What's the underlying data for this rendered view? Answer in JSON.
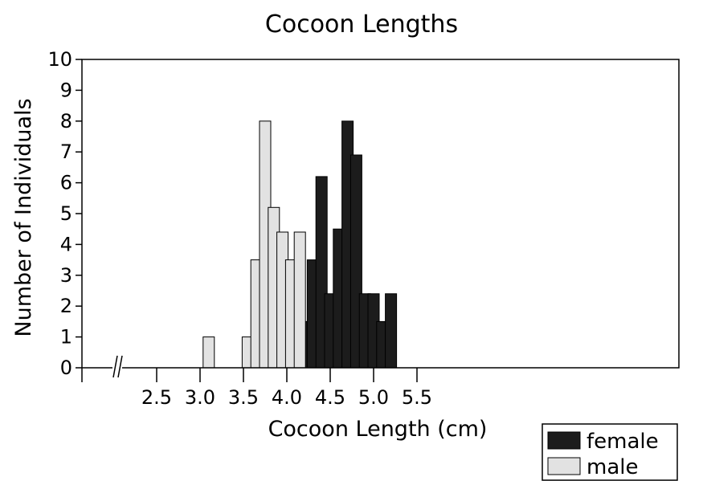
{
  "chart_data": {
    "type": "bar",
    "title": "Cocoon Lengths",
    "xlabel": "Cocoon Length (cm)",
    "ylabel": "Number of Individuals",
    "xlim": [
      2.0,
      5.5
    ],
    "ylim": [
      0,
      10
    ],
    "x_ticks": [
      2.5,
      3.0,
      3.5,
      4.0,
      4.5,
      5.0,
      5.5
    ],
    "x_tick_labels": [
      "2.5",
      "3.0",
      "3.5",
      "4.0",
      "4.5",
      "5.0",
      "5.5"
    ],
    "y_ticks": [
      0,
      1,
      2,
      3,
      4,
      5,
      6,
      7,
      8,
      9,
      10
    ],
    "y_tick_labels": [
      "0",
      "1",
      "2",
      "3",
      "4",
      "5",
      "6",
      "7",
      "8",
      "9",
      "10"
    ],
    "axis_break": true,
    "grid": false,
    "legend_position": "bottom-right",
    "series": [
      {
        "name": "female",
        "color": "#1c1c1c",
        "x": [
          4.1,
          4.2,
          4.3,
          4.4,
          4.5,
          4.6,
          4.7,
          4.8,
          4.9,
          5.0,
          5.1,
          5.2
        ],
        "values": [
          2.4,
          1.5,
          3.5,
          6.2,
          2.4,
          4.5,
          8.0,
          6.9,
          2.4,
          2.4,
          1.5,
          2.4
        ]
      },
      {
        "name": "male",
        "color": "#e2e2e2",
        "x": [
          3.1,
          3.55,
          3.65,
          3.75,
          3.85,
          3.95,
          4.05,
          4.15
        ],
        "values": [
          1.0,
          1.0,
          3.5,
          8.0,
          5.2,
          4.4,
          3.5,
          4.4
        ]
      }
    ]
  }
}
